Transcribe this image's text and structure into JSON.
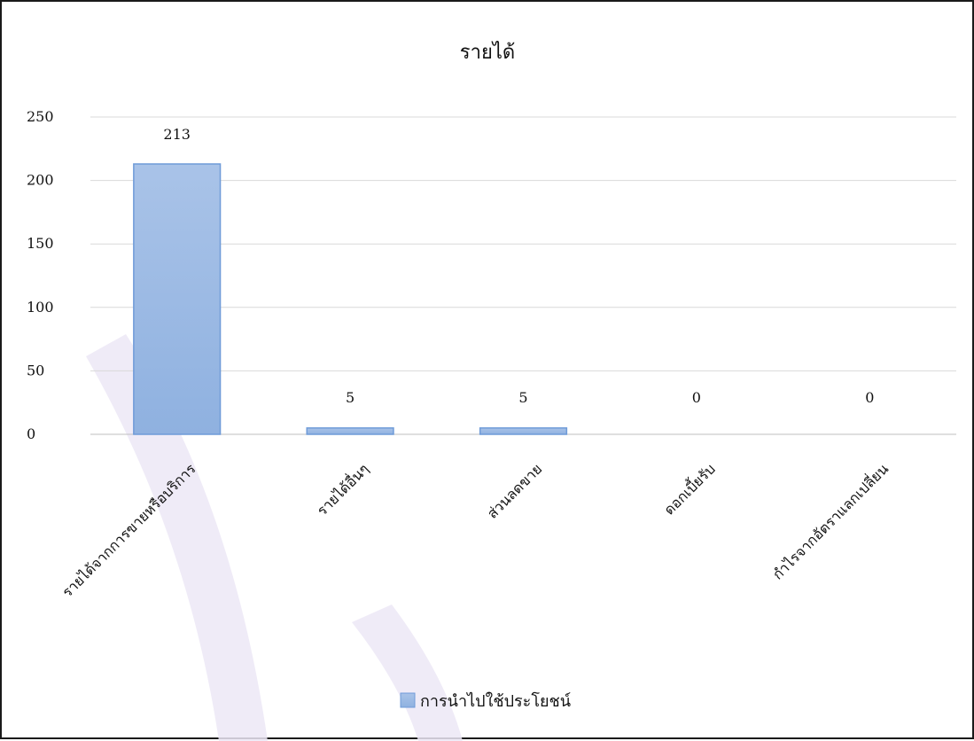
{
  "chart_data": {
    "type": "bar",
    "title": "รายได้",
    "categories": [
      "รายได้จากการขายหรือบริการ",
      "รายได้อื่นๆ",
      "ส่วนลดขาย",
      "ดอกเบี้ยรับ",
      "กำไรจากอัตราแลกเปลี่ยน"
    ],
    "series": [
      {
        "name": "การนำไปใช้ประโยชน์",
        "values": [
          213,
          5,
          5,
          0,
          0
        ]
      }
    ],
    "ylim": [
      0,
      250
    ],
    "yticks": [
      0,
      50,
      100,
      150,
      200,
      250
    ],
    "grid": true,
    "legend": "bottom",
    "colors": {
      "bar_top": "#a9c3e8",
      "bar_bottom": "#8fb1e0",
      "bar_stroke": "#6f9bd8",
      "grid": "#d9d9d9",
      "watermark": "#ece7f6"
    }
  }
}
